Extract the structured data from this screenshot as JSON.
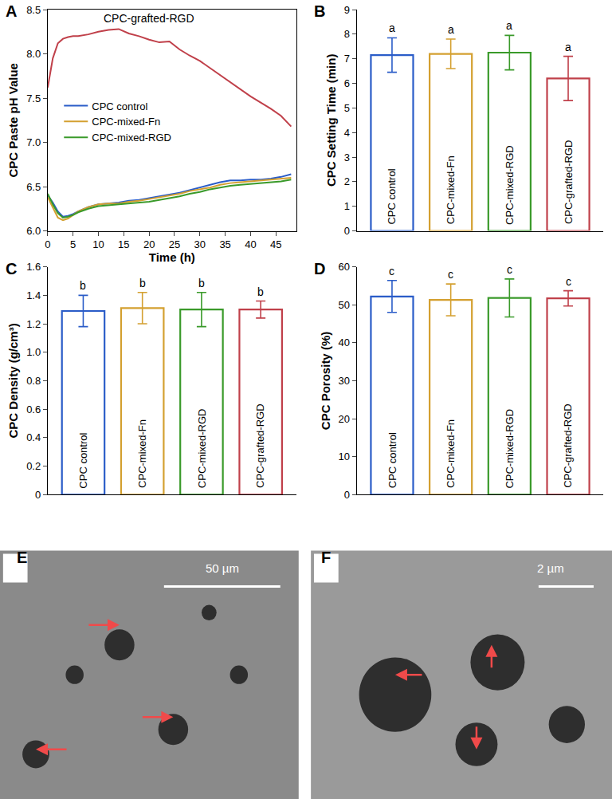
{
  "chart_data": [
    {
      "label": "A",
      "type": "line",
      "x_label": "Time (h)",
      "y_label": "CPC Paste pH Value",
      "x": [
        0,
        1,
        2,
        3,
        4,
        5,
        6,
        8,
        10,
        12,
        14,
        16,
        18,
        20,
        22,
        24,
        26,
        28,
        30,
        32,
        34,
        36,
        38,
        40,
        42,
        44,
        46,
        48
      ],
      "xlim": [
        0,
        49
      ],
      "xticks": [
        0,
        5,
        10,
        15,
        20,
        25,
        30,
        35,
        40,
        45
      ],
      "ylim": [
        6,
        8.5
      ],
      "yticks": [
        {
          "value": 6,
          "label": "6.0"
        },
        {
          "value": 6.5,
          "label": "6.5"
        },
        {
          "value": 7,
          "label": "7.0"
        },
        {
          "value": 7.5,
          "label": "7.5"
        },
        {
          "value": 8,
          "label": "8.0"
        },
        {
          "value": 8.5,
          "label": "8.5"
        }
      ],
      "legend": "left",
      "annotations": [
        {
          "text": "CPC-grafted-RGD",
          "x": 20,
          "y": 8.4
        }
      ],
      "series": [
        {
          "name": "CPC-grafted-RGD",
          "color": "#c0404a",
          "values": [
            7.62,
            7.95,
            8.12,
            8.17,
            8.19,
            8.2,
            8.2,
            8.22,
            8.25,
            8.27,
            8.28,
            8.23,
            8.2,
            8.16,
            8.13,
            8.14,
            8.05,
            7.98,
            7.92,
            7.84,
            7.76,
            7.68,
            7.6,
            7.52,
            7.45,
            7.38,
            7.3,
            7.18
          ]
        },
        {
          "name": "CPC control",
          "color": "#2a5cc8",
          "values": [
            6.4,
            6.32,
            6.22,
            6.16,
            6.17,
            6.19,
            6.22,
            6.27,
            6.3,
            6.31,
            6.32,
            6.34,
            6.35,
            6.37,
            6.39,
            6.41,
            6.43,
            6.46,
            6.49,
            6.52,
            6.55,
            6.57,
            6.57,
            6.58,
            6.58,
            6.59,
            6.61,
            6.64
          ]
        },
        {
          "name": "CPC-mixed-Fn",
          "color": "#d4a030",
          "values": [
            6.38,
            6.26,
            6.15,
            6.12,
            6.14,
            6.18,
            6.22,
            6.27,
            6.3,
            6.31,
            6.31,
            6.33,
            6.34,
            6.36,
            6.38,
            6.4,
            6.42,
            6.45,
            6.47,
            6.49,
            6.52,
            6.54,
            6.55,
            6.56,
            6.57,
            6.58,
            6.59,
            6.6
          ]
        },
        {
          "name": "CPC-mixed-RGD",
          "color": "#3a9a2a",
          "values": [
            6.42,
            6.3,
            6.2,
            6.15,
            6.16,
            6.18,
            6.21,
            6.25,
            6.28,
            6.29,
            6.3,
            6.31,
            6.32,
            6.33,
            6.35,
            6.37,
            6.39,
            6.42,
            6.44,
            6.47,
            6.49,
            6.51,
            6.52,
            6.53,
            6.54,
            6.55,
            6.56,
            6.58
          ]
        }
      ]
    },
    {
      "label": "B",
      "type": "bar",
      "y_label": "CPC Setting Time (min)",
      "categories": [
        "CPC control",
        "CPC-mixed-Fn",
        "CPC-mixed-RGD",
        "CPC-grafted-RGD"
      ],
      "values": [
        7.15,
        7.2,
        7.25,
        6.2
      ],
      "errors": [
        0.7,
        0.6,
        0.7,
        0.9
      ],
      "group_labels": [
        "a",
        "a",
        "a",
        "a"
      ],
      "colors": [
        "#2a5cc8",
        "#d4a030",
        "#3a9a2a",
        "#c0404a"
      ],
      "ylim": [
        0,
        9
      ],
      "yticks": [
        0,
        1,
        2,
        3,
        4,
        5,
        6,
        7,
        8,
        9
      ],
      "tick_labels": "y"
    },
    {
      "label": "C",
      "type": "bar",
      "y_label": "CPC Density (g/cm³)",
      "categories": [
        "CPC control",
        "CPC-mixed-Fn",
        "CPC-mixed-RGD",
        "CPC-grafted-RGD"
      ],
      "values": [
        1.29,
        1.31,
        1.3,
        1.3
      ],
      "errors": [
        0.11,
        0.11,
        0.12,
        0.06
      ],
      "group_labels": [
        "b",
        "b",
        "b",
        "b"
      ],
      "colors": [
        "#2a5cc8",
        "#d4a030",
        "#3a9a2a",
        "#c0404a"
      ],
      "ylim": [
        0,
        1.6
      ],
      "yticks": [
        0,
        0.2,
        0.4,
        0.6,
        0.8,
        {
          "value": 1,
          "label": "1.0"
        },
        1.2,
        1.4,
        1.6
      ],
      "tick_labels": "y"
    },
    {
      "label": "D",
      "type": "bar",
      "y_label": "CPC Porosity (%)",
      "categories": [
        "CPC control",
        "CPC-mixed-Fn",
        "CPC-mixed-RGD",
        "CPC-grafted-RGD"
      ],
      "values": [
        52.2,
        51.3,
        51.8,
        51.7
      ],
      "errors": [
        4.2,
        4.2,
        5,
        2
      ],
      "group_labels": [
        "c",
        "c",
        "c",
        "c"
      ],
      "colors": [
        "#2a5cc8",
        "#d4a030",
        "#3a9a2a",
        "#c0404a"
      ],
      "ylim": [
        0,
        60
      ],
      "yticks": [
        0,
        10,
        20,
        30,
        40,
        50,
        60
      ],
      "tick_labels": "y"
    }
  ],
  "images": [
    {
      "label": "E",
      "scale_bar": "50 µm"
    },
    {
      "label": "F",
      "scale_bar": "2 µm"
    }
  ]
}
